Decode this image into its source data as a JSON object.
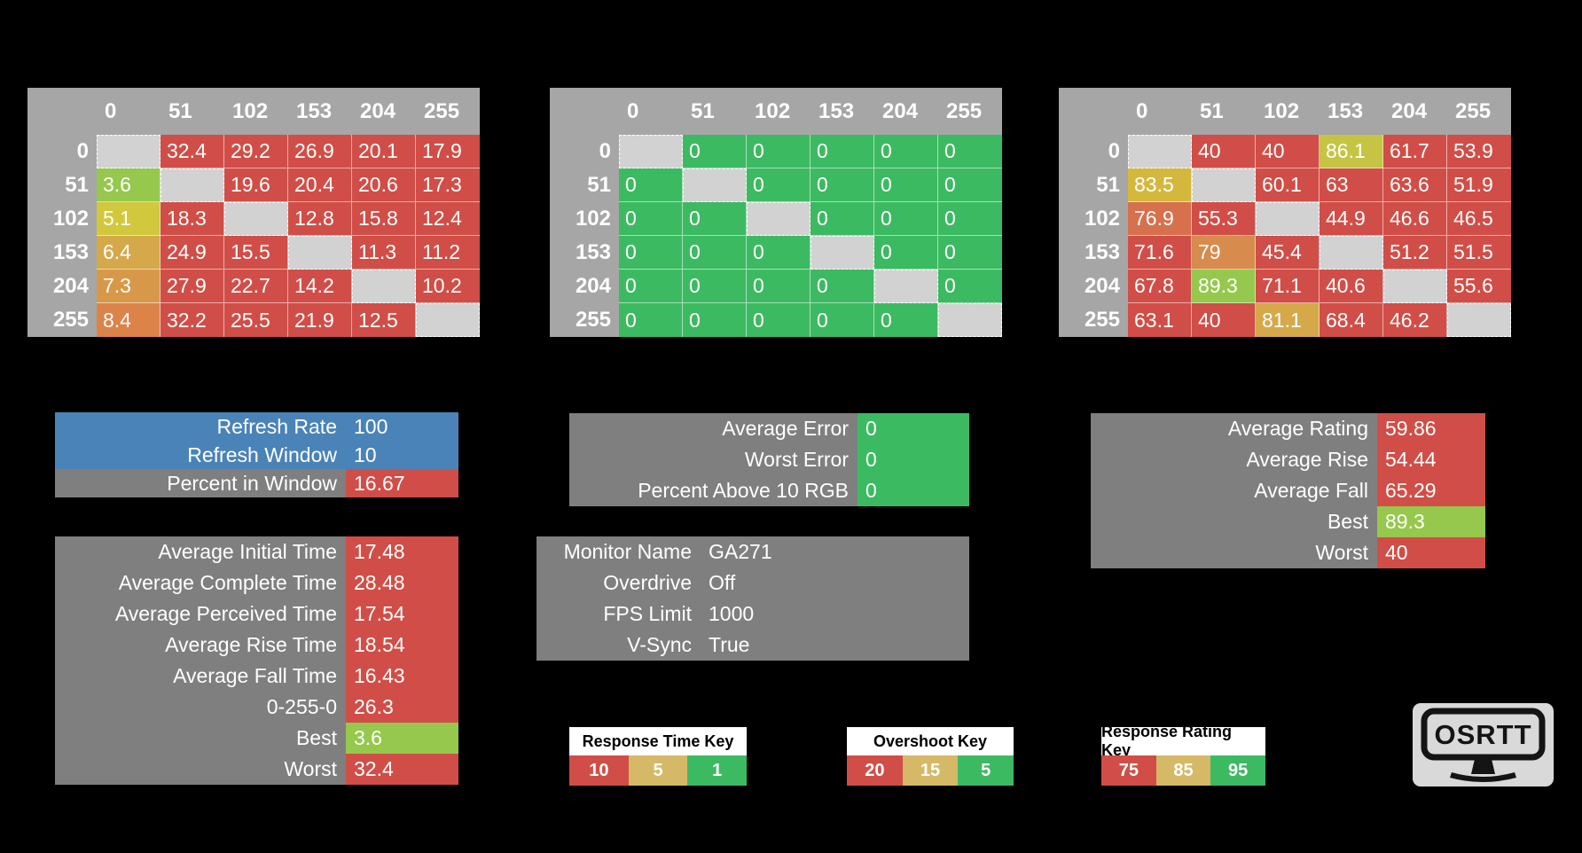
{
  "colors": {
    "background": "#000000",
    "red": "#D04E47",
    "green": "#3CBA62",
    "lime": "#95C84C",
    "yellow": "#D2C83E",
    "yellow_green": "#C6C443",
    "gold": "#D5A94A",
    "dark_gold": "#D4B83E",
    "orange": "#D79949",
    "orange_deep": "#D78B4C",
    "dark_orange": "#DB8349",
    "orange_red": "#D7704C",
    "blue": "#4A83B7",
    "panel_gray": "#7F7F7F",
    "matrix_gray": "#A6A6A6",
    "diagonal_gray": "#D2D2D2",
    "key_gold": "#D6B966",
    "logo_bg": "#D9D9D9"
  },
  "matrices": [
    {
      "id": "response-time",
      "headers": [
        "0",
        "51",
        "102",
        "153",
        "204",
        "255"
      ],
      "rows": [
        {
          "label": "0",
          "cells": [
            null,
            [
              "32.4",
              "red"
            ],
            [
              "29.2",
              "red"
            ],
            [
              "26.9",
              "red"
            ],
            [
              "20.1",
              "red"
            ],
            [
              "17.9",
              "red"
            ]
          ]
        },
        {
          "label": "51",
          "cells": [
            [
              "3.6",
              "lime"
            ],
            null,
            [
              "19.6",
              "red"
            ],
            [
              "20.4",
              "red"
            ],
            [
              "20.6",
              "red"
            ],
            [
              "17.3",
              "red"
            ]
          ]
        },
        {
          "label": "102",
          "cells": [
            [
              "5.1",
              "yellow"
            ],
            [
              "18.3",
              "red"
            ],
            null,
            [
              "12.8",
              "red"
            ],
            [
              "15.8",
              "red"
            ],
            [
              "12.4",
              "red"
            ]
          ]
        },
        {
          "label": "153",
          "cells": [
            [
              "6.4",
              "gold"
            ],
            [
              "24.9",
              "red"
            ],
            [
              "15.5",
              "red"
            ],
            null,
            [
              "11.3",
              "red"
            ],
            [
              "11.2",
              "red"
            ]
          ]
        },
        {
          "label": "204",
          "cells": [
            [
              "7.3",
              "orange"
            ],
            [
              "27.9",
              "red"
            ],
            [
              "22.7",
              "red"
            ],
            [
              "14.2",
              "red"
            ],
            null,
            [
              "10.2",
              "red"
            ]
          ]
        },
        {
          "label": "255",
          "cells": [
            [
              "8.4",
              "dark_orange"
            ],
            [
              "32.2",
              "red"
            ],
            [
              "25.5",
              "red"
            ],
            [
              "21.9",
              "red"
            ],
            [
              "12.5",
              "red"
            ],
            null
          ]
        }
      ]
    },
    {
      "id": "overshoot",
      "headers": [
        "0",
        "51",
        "102",
        "153",
        "204",
        "255"
      ],
      "rows": [
        {
          "label": "0",
          "cells": [
            null,
            [
              "0",
              "green"
            ],
            [
              "0",
              "green"
            ],
            [
              "0",
              "green"
            ],
            [
              "0",
              "green"
            ],
            [
              "0",
              "green"
            ]
          ]
        },
        {
          "label": "51",
          "cells": [
            [
              "0",
              "green"
            ],
            null,
            [
              "0",
              "green"
            ],
            [
              "0",
              "green"
            ],
            [
              "0",
              "green"
            ],
            [
              "0",
              "green"
            ]
          ]
        },
        {
          "label": "102",
          "cells": [
            [
              "0",
              "green"
            ],
            [
              "0",
              "green"
            ],
            null,
            [
              "0",
              "green"
            ],
            [
              "0",
              "green"
            ],
            [
              "0",
              "green"
            ]
          ]
        },
        {
          "label": "153",
          "cells": [
            [
              "0",
              "green"
            ],
            [
              "0",
              "green"
            ],
            [
              "0",
              "green"
            ],
            null,
            [
              "0",
              "green"
            ],
            [
              "0",
              "green"
            ]
          ]
        },
        {
          "label": "204",
          "cells": [
            [
              "0",
              "green"
            ],
            [
              "0",
              "green"
            ],
            [
              "0",
              "green"
            ],
            [
              "0",
              "green"
            ],
            null,
            [
              "0",
              "green"
            ]
          ]
        },
        {
          "label": "255",
          "cells": [
            [
              "0",
              "green"
            ],
            [
              "0",
              "green"
            ],
            [
              "0",
              "green"
            ],
            [
              "0",
              "green"
            ],
            [
              "0",
              "green"
            ],
            null
          ]
        }
      ]
    },
    {
      "id": "response-rating",
      "headers": [
        "0",
        "51",
        "102",
        "153",
        "204",
        "255"
      ],
      "rows": [
        {
          "label": "0",
          "cells": [
            null,
            [
              "40",
              "red"
            ],
            [
              "40",
              "red"
            ],
            [
              "86.1",
              "yellow_green"
            ],
            [
              "61.7",
              "red"
            ],
            [
              "53.9",
              "red"
            ]
          ]
        },
        {
          "label": "51",
          "cells": [
            [
              "83.5",
              "dark_gold"
            ],
            null,
            [
              "60.1",
              "red"
            ],
            [
              "63",
              "red"
            ],
            [
              "63.6",
              "red"
            ],
            [
              "51.9",
              "red"
            ]
          ]
        },
        {
          "label": "102",
          "cells": [
            [
              "76.9",
              "orange_red"
            ],
            [
              "55.3",
              "red"
            ],
            null,
            [
              "44.9",
              "red"
            ],
            [
              "46.6",
              "red"
            ],
            [
              "46.5",
              "red"
            ]
          ]
        },
        {
          "label": "153",
          "cells": [
            [
              "71.6",
              "red"
            ],
            [
              "79",
              "orange_deep"
            ],
            [
              "45.4",
              "red"
            ],
            null,
            [
              "51.2",
              "red"
            ],
            [
              "51.5",
              "red"
            ]
          ]
        },
        {
          "label": "204",
          "cells": [
            [
              "67.8",
              "red"
            ],
            [
              "89.3",
              "lime"
            ],
            [
              "71.1",
              "red"
            ],
            [
              "40.6",
              "red"
            ],
            null,
            [
              "55.6",
              "red"
            ]
          ]
        },
        {
          "label": "255",
          "cells": [
            [
              "63.1",
              "red"
            ],
            [
              "40",
              "red"
            ],
            [
              "81.1",
              "gold"
            ],
            [
              "68.4",
              "red"
            ],
            [
              "46.2",
              "red"
            ],
            null
          ]
        }
      ]
    }
  ],
  "panels": {
    "refresh": {
      "rows": [
        {
          "label": "Refresh Rate",
          "value": "100",
          "bg": "blue"
        },
        {
          "label": "Refresh Window",
          "value": "10",
          "bg": "blue"
        },
        {
          "label": "Percent in Window",
          "value": "16.67",
          "bg": "panel_gray",
          "value_bg": "red"
        }
      ]
    },
    "errors": {
      "rows": [
        {
          "label": "Average Error",
          "value": "0",
          "bg": "panel_gray",
          "value_bg": "green"
        },
        {
          "label": "Worst Error",
          "value": "0",
          "bg": "panel_gray",
          "value_bg": "green"
        },
        {
          "label": "Percent Above 10 RGB",
          "value": "0",
          "bg": "panel_gray",
          "value_bg": "green"
        }
      ]
    },
    "rating": {
      "rows": [
        {
          "label": "Average Rating",
          "value": "59.86",
          "bg": "panel_gray",
          "value_bg": "red"
        },
        {
          "label": "Average Rise",
          "value": "54.44",
          "bg": "panel_gray",
          "value_bg": "red"
        },
        {
          "label": "Average Fall",
          "value": "65.29",
          "bg": "panel_gray",
          "value_bg": "red"
        },
        {
          "label": "Best",
          "value": "89.3",
          "bg": "panel_gray",
          "value_bg": "lime"
        },
        {
          "label": "Worst",
          "value": "40",
          "bg": "panel_gray",
          "value_bg": "red"
        }
      ]
    },
    "times": {
      "rows": [
        {
          "label": "Average Initial Time",
          "value": "17.48",
          "bg": "panel_gray",
          "value_bg": "red"
        },
        {
          "label": "Average Complete Time",
          "value": "28.48",
          "bg": "panel_gray",
          "value_bg": "red"
        },
        {
          "label": "Average Perceived Time",
          "value": "17.54",
          "bg": "panel_gray",
          "value_bg": "red"
        },
        {
          "label": "Average Rise Time",
          "value": "18.54",
          "bg": "panel_gray",
          "value_bg": "red"
        },
        {
          "label": "Average Fall Time",
          "value": "16.43",
          "bg": "panel_gray",
          "value_bg": "red"
        },
        {
          "label": "0-255-0",
          "value": "26.3",
          "bg": "panel_gray",
          "value_bg": "red"
        },
        {
          "label": "Best",
          "value": "3.6",
          "bg": "panel_gray",
          "value_bg": "lime"
        },
        {
          "label": "Worst",
          "value": "32.4",
          "bg": "panel_gray",
          "value_bg": "red"
        }
      ]
    },
    "settings": {
      "rows": [
        {
          "label": "Monitor Name",
          "value": "GA271"
        },
        {
          "label": "Overdrive",
          "value": "Off"
        },
        {
          "label": "FPS Limit",
          "value": "1000"
        },
        {
          "label": "V-Sync",
          "value": "True"
        }
      ]
    }
  },
  "keys": [
    {
      "title": "Response Time Key",
      "cells": [
        [
          "10",
          "red"
        ],
        [
          "5",
          "key_gold"
        ],
        [
          "1",
          "green"
        ]
      ]
    },
    {
      "title": "Overshoot Key",
      "cells": [
        [
          "20",
          "red"
        ],
        [
          "15",
          "key_gold"
        ],
        [
          "5",
          "green"
        ]
      ]
    },
    {
      "title": "Response Rating Key",
      "cells": [
        [
          "75",
          "red"
        ],
        [
          "85",
          "key_gold"
        ],
        [
          "95",
          "green"
        ]
      ]
    }
  ],
  "logo": {
    "text": "OSRTT"
  },
  "chart_data": [
    {
      "type": "heatmap",
      "name": "response_time",
      "x_labels": [
        0,
        51,
        102,
        153,
        204,
        255
      ],
      "y_labels": [
        0,
        51,
        102,
        153,
        204,
        255
      ],
      "values": [
        [
          null,
          32.4,
          29.2,
          26.9,
          20.1,
          17.9
        ],
        [
          3.6,
          null,
          19.6,
          20.4,
          20.6,
          17.3
        ],
        [
          5.1,
          18.3,
          null,
          12.8,
          15.8,
          12.4
        ],
        [
          6.4,
          24.9,
          15.5,
          null,
          11.3,
          11.2
        ],
        [
          7.3,
          27.9,
          22.7,
          14.2,
          null,
          10.2
        ],
        [
          8.4,
          32.2,
          25.5,
          21.9,
          12.5,
          null
        ]
      ],
      "color_key": {
        "red": 10,
        "gold": 5,
        "green": 1
      }
    },
    {
      "type": "heatmap",
      "name": "overshoot",
      "x_labels": [
        0,
        51,
        102,
        153,
        204,
        255
      ],
      "y_labels": [
        0,
        51,
        102,
        153,
        204,
        255
      ],
      "values": [
        [
          null,
          0,
          0,
          0,
          0,
          0
        ],
        [
          0,
          null,
          0,
          0,
          0,
          0
        ],
        [
          0,
          0,
          null,
          0,
          0,
          0
        ],
        [
          0,
          0,
          0,
          null,
          0,
          0
        ],
        [
          0,
          0,
          0,
          0,
          null,
          0
        ],
        [
          0,
          0,
          0,
          0,
          0,
          null
        ]
      ],
      "color_key": {
        "red": 20,
        "gold": 15,
        "green": 5
      }
    },
    {
      "type": "heatmap",
      "name": "response_rating",
      "x_labels": [
        0,
        51,
        102,
        153,
        204,
        255
      ],
      "y_labels": [
        0,
        51,
        102,
        153,
        204,
        255
      ],
      "values": [
        [
          null,
          40,
          40,
          86.1,
          61.7,
          53.9
        ],
        [
          83.5,
          null,
          60.1,
          63,
          63.6,
          51.9
        ],
        [
          76.9,
          55.3,
          null,
          44.9,
          46.6,
          46.5
        ],
        [
          71.6,
          79,
          45.4,
          null,
          51.2,
          51.5
        ],
        [
          67.8,
          89.3,
          71.1,
          40.6,
          null,
          55.6
        ],
        [
          63.1,
          40,
          81.1,
          68.4,
          46.2,
          null
        ]
      ],
      "color_key": {
        "red": 75,
        "gold": 85,
        "green": 95
      }
    }
  ]
}
